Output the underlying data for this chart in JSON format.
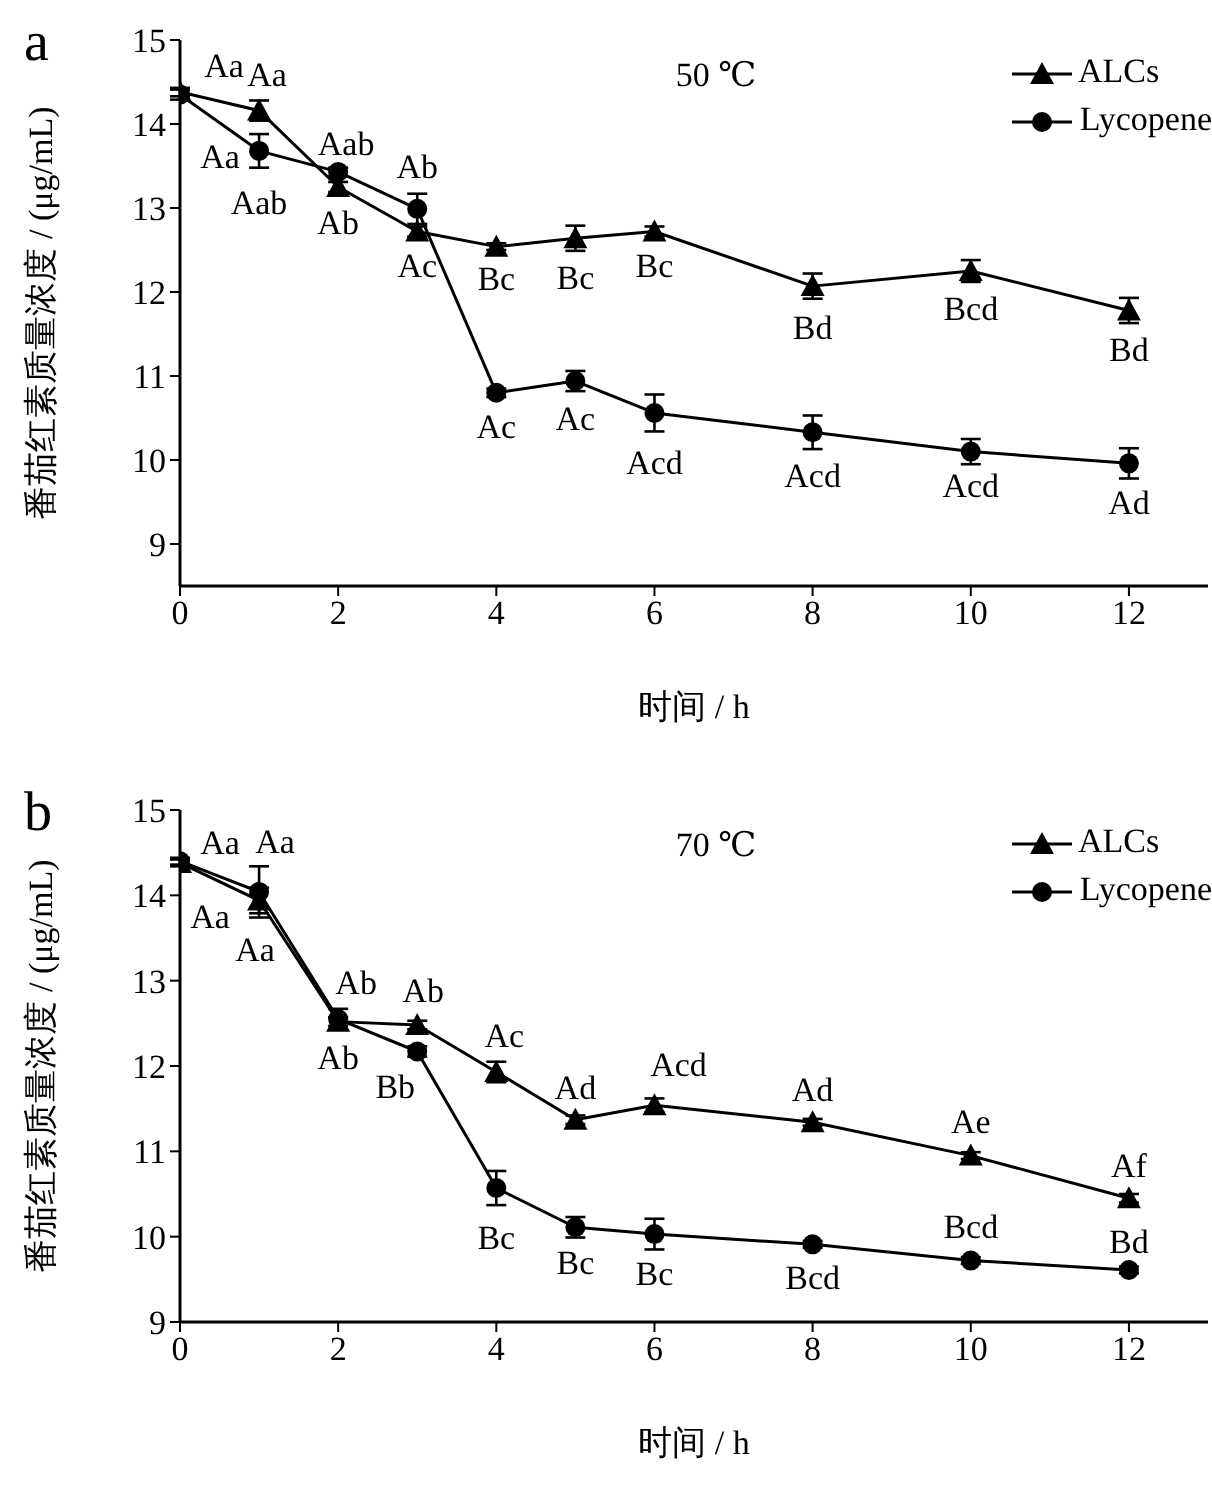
{
  "chart_data": [
    {
      "type": "line",
      "title": "50 ℃",
      "xlabel": "时间 / h",
      "ylabel": "番茄红素质量浓度 / (μg/mL)",
      "x": [
        0,
        1,
        2,
        3,
        4,
        5,
        6,
        8,
        10,
        12
      ],
      "xlim": [
        0,
        13
      ],
      "xticks": [
        0,
        2,
        4,
        6,
        8,
        10,
        12
      ],
      "ylim": [
        8.5,
        15
      ],
      "yticks": [
        9,
        10,
        11,
        12,
        13,
        14,
        15
      ],
      "grid": false,
      "legend": "top right",
      "series": [
        {
          "name": "ALCs",
          "color": "#000000",
          "marker": "triangle",
          "values": [
            14.38,
            14.16,
            13.25,
            12.72,
            12.54,
            12.64,
            12.72,
            12.07,
            12.25,
            11.78
          ],
          "errors": [
            0.05,
            0.12,
            0.06,
            0.06,
            0.04,
            0.15,
            0.06,
            0.15,
            0.13,
            0.15
          ]
        },
        {
          "name": "Lycopene",
          "color": "#000000",
          "marker": "circle",
          "values": [
            14.35,
            13.68,
            13.43,
            12.99,
            10.8,
            10.94,
            10.56,
            10.33,
            10.1,
            9.96
          ],
          "errors": [
            0.06,
            0.2,
            0.05,
            0.18,
            0.05,
            0.12,
            0.22,
            0.2,
            0.15,
            0.18
          ]
        }
      ],
      "annotations": [
        "a",
        {
          "text": "Aa",
          "x": 0,
          "y": 14.38
        },
        {
          "text": "Aa",
          "x": 1,
          "y": 14.16
        },
        {
          "text": "Aa",
          "x": 0,
          "y": 14.35
        },
        {
          "text": "Aab",
          "x": 1,
          "y": 13.68
        },
        {
          "text": "Aab",
          "x": 2,
          "y": 13.43
        },
        {
          "text": "Ab",
          "x": 2,
          "y": 13.25
        },
        {
          "text": "Ab",
          "x": 3,
          "y": 12.99
        },
        {
          "text": "Ac",
          "x": 3,
          "y": 12.72
        },
        {
          "text": "Bc",
          "x": 4,
          "y": 12.54
        },
        {
          "text": "Bc",
          "x": 5,
          "y": 12.64
        },
        {
          "text": "Bc",
          "x": 6,
          "y": 12.72
        },
        {
          "text": "Bd",
          "x": 8,
          "y": 12.07
        },
        {
          "text": "Bcd",
          "x": 10,
          "y": 12.25
        },
        {
          "text": "Bd",
          "x": 12,
          "y": 11.78
        },
        {
          "text": "Ac",
          "x": 4,
          "y": 10.8
        },
        {
          "text": "Ac",
          "x": 5,
          "y": 10.94
        },
        {
          "text": "Acd",
          "x": 6,
          "y": 10.56
        },
        {
          "text": "Acd",
          "x": 8,
          "y": 10.33
        },
        {
          "text": "Acd",
          "x": 10,
          "y": 10.1
        },
        {
          "text": "Ad",
          "x": 12,
          "y": 9.96
        }
      ]
    },
    {
      "type": "line",
      "title": "70 ℃",
      "xlabel": "时间 / h",
      "ylabel": "番茄红素质量浓度 / (μg/mL)",
      "x": [
        0,
        1,
        2,
        3,
        4,
        5,
        6,
        8,
        10,
        12
      ],
      "xlim": [
        0,
        13
      ],
      "xticks": [
        0,
        2,
        4,
        6,
        8,
        10,
        12
      ],
      "ylim": [
        9,
        15
      ],
      "yticks": [
        9,
        10,
        11,
        12,
        13,
        14,
        15
      ],
      "grid": false,
      "legend": "top right",
      "series": [
        {
          "name": "ALCs",
          "color": "#000000",
          "marker": "triangle",
          "values": [
            14.38,
            13.94,
            12.52,
            12.48,
            11.93,
            11.37,
            11.54,
            11.34,
            10.95,
            10.45
          ],
          "errors": [
            0.04,
            0.15,
            0.05,
            0.05,
            0.12,
            0.05,
            0.08,
            0.04,
            0.04,
            0.05
          ]
        },
        {
          "name": "Lycopene",
          "color": "#000000",
          "marker": "circle",
          "values": [
            14.4,
            14.04,
            12.55,
            12.17,
            10.57,
            10.11,
            10.03,
            9.91,
            9.72,
            9.61
          ],
          "errors": [
            0.04,
            0.3,
            0.12,
            0.06,
            0.2,
            0.12,
            0.18,
            0.04,
            0.04,
            0.04
          ]
        }
      ],
      "annotations": [
        "b",
        {
          "text": "Aa",
          "x": 0,
          "y": 14.38
        },
        {
          "text": "Aa",
          "x": 1,
          "y": 14.04
        },
        {
          "text": "Aa",
          "x": 0,
          "y": 14.4
        },
        {
          "text": "Aa",
          "x": 1,
          "y": 13.94
        },
        {
          "text": "Ab",
          "x": 2,
          "y": 12.55
        },
        {
          "text": "Ab",
          "x": 2,
          "y": 12.52
        },
        {
          "text": "Ab",
          "x": 3,
          "y": 12.48
        },
        {
          "text": "Bb",
          "x": 3,
          "y": 12.17
        },
        {
          "text": "Ac",
          "x": 4,
          "y": 11.93
        },
        {
          "text": "Ad",
          "x": 5,
          "y": 11.37
        },
        {
          "text": "Acd",
          "x": 6,
          "y": 11.54
        },
        {
          "text": "Ad",
          "x": 8,
          "y": 11.34
        },
        {
          "text": "Ae",
          "x": 10,
          "y": 10.95
        },
        {
          "text": "Af",
          "x": 12,
          "y": 10.45
        },
        {
          "text": "Bc",
          "x": 4,
          "y": 10.57
        },
        {
          "text": "Bc",
          "x": 5,
          "y": 10.11
        },
        {
          "text": "Bc",
          "x": 6,
          "y": 10.03
        },
        {
          "text": "Bcd",
          "x": 8,
          "y": 9.91
        },
        {
          "text": "Bcd",
          "x": 10,
          "y": 9.72
        },
        {
          "text": "Bd",
          "x": 12,
          "y": 9.61
        }
      ]
    }
  ]
}
